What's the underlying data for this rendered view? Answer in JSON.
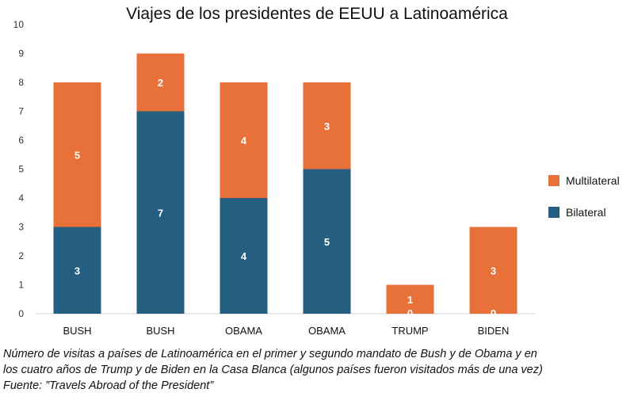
{
  "chart_data": {
    "type": "bar",
    "stacked": true,
    "title": "Viajes de los presidentes de EEUU a Latinoamérica",
    "categories": [
      "BUSH",
      "BUSH",
      "OBAMA",
      "OBAMA",
      "TRUMP",
      "BIDEN"
    ],
    "series": [
      {
        "name": "Bilateral",
        "color": "#245e80",
        "values": [
          3,
          7,
          4,
          5,
          0,
          0
        ]
      },
      {
        "name": "Multilateral",
        "color": "#e8713a",
        "values": [
          5,
          2,
          4,
          3,
          1,
          3
        ]
      }
    ],
    "ylim": [
      0,
      10
    ],
    "yticks": [
      0,
      1,
      2,
      3,
      4,
      5,
      6,
      7,
      8,
      9,
      10
    ],
    "grid": false,
    "legend": "right",
    "xlabel": "",
    "ylabel": ""
  },
  "caption": {
    "line1": "Número de visitas a países de Latinoamérica en el primer y segundo mandato de Bush y de Obama y en",
    "line2": "los cuatro años de Trump y de Biden en la Casa Blanca (algunos países fueron visitados más de una vez)",
    "line3": "Fuente: ”Travels Abroad of the President”"
  }
}
